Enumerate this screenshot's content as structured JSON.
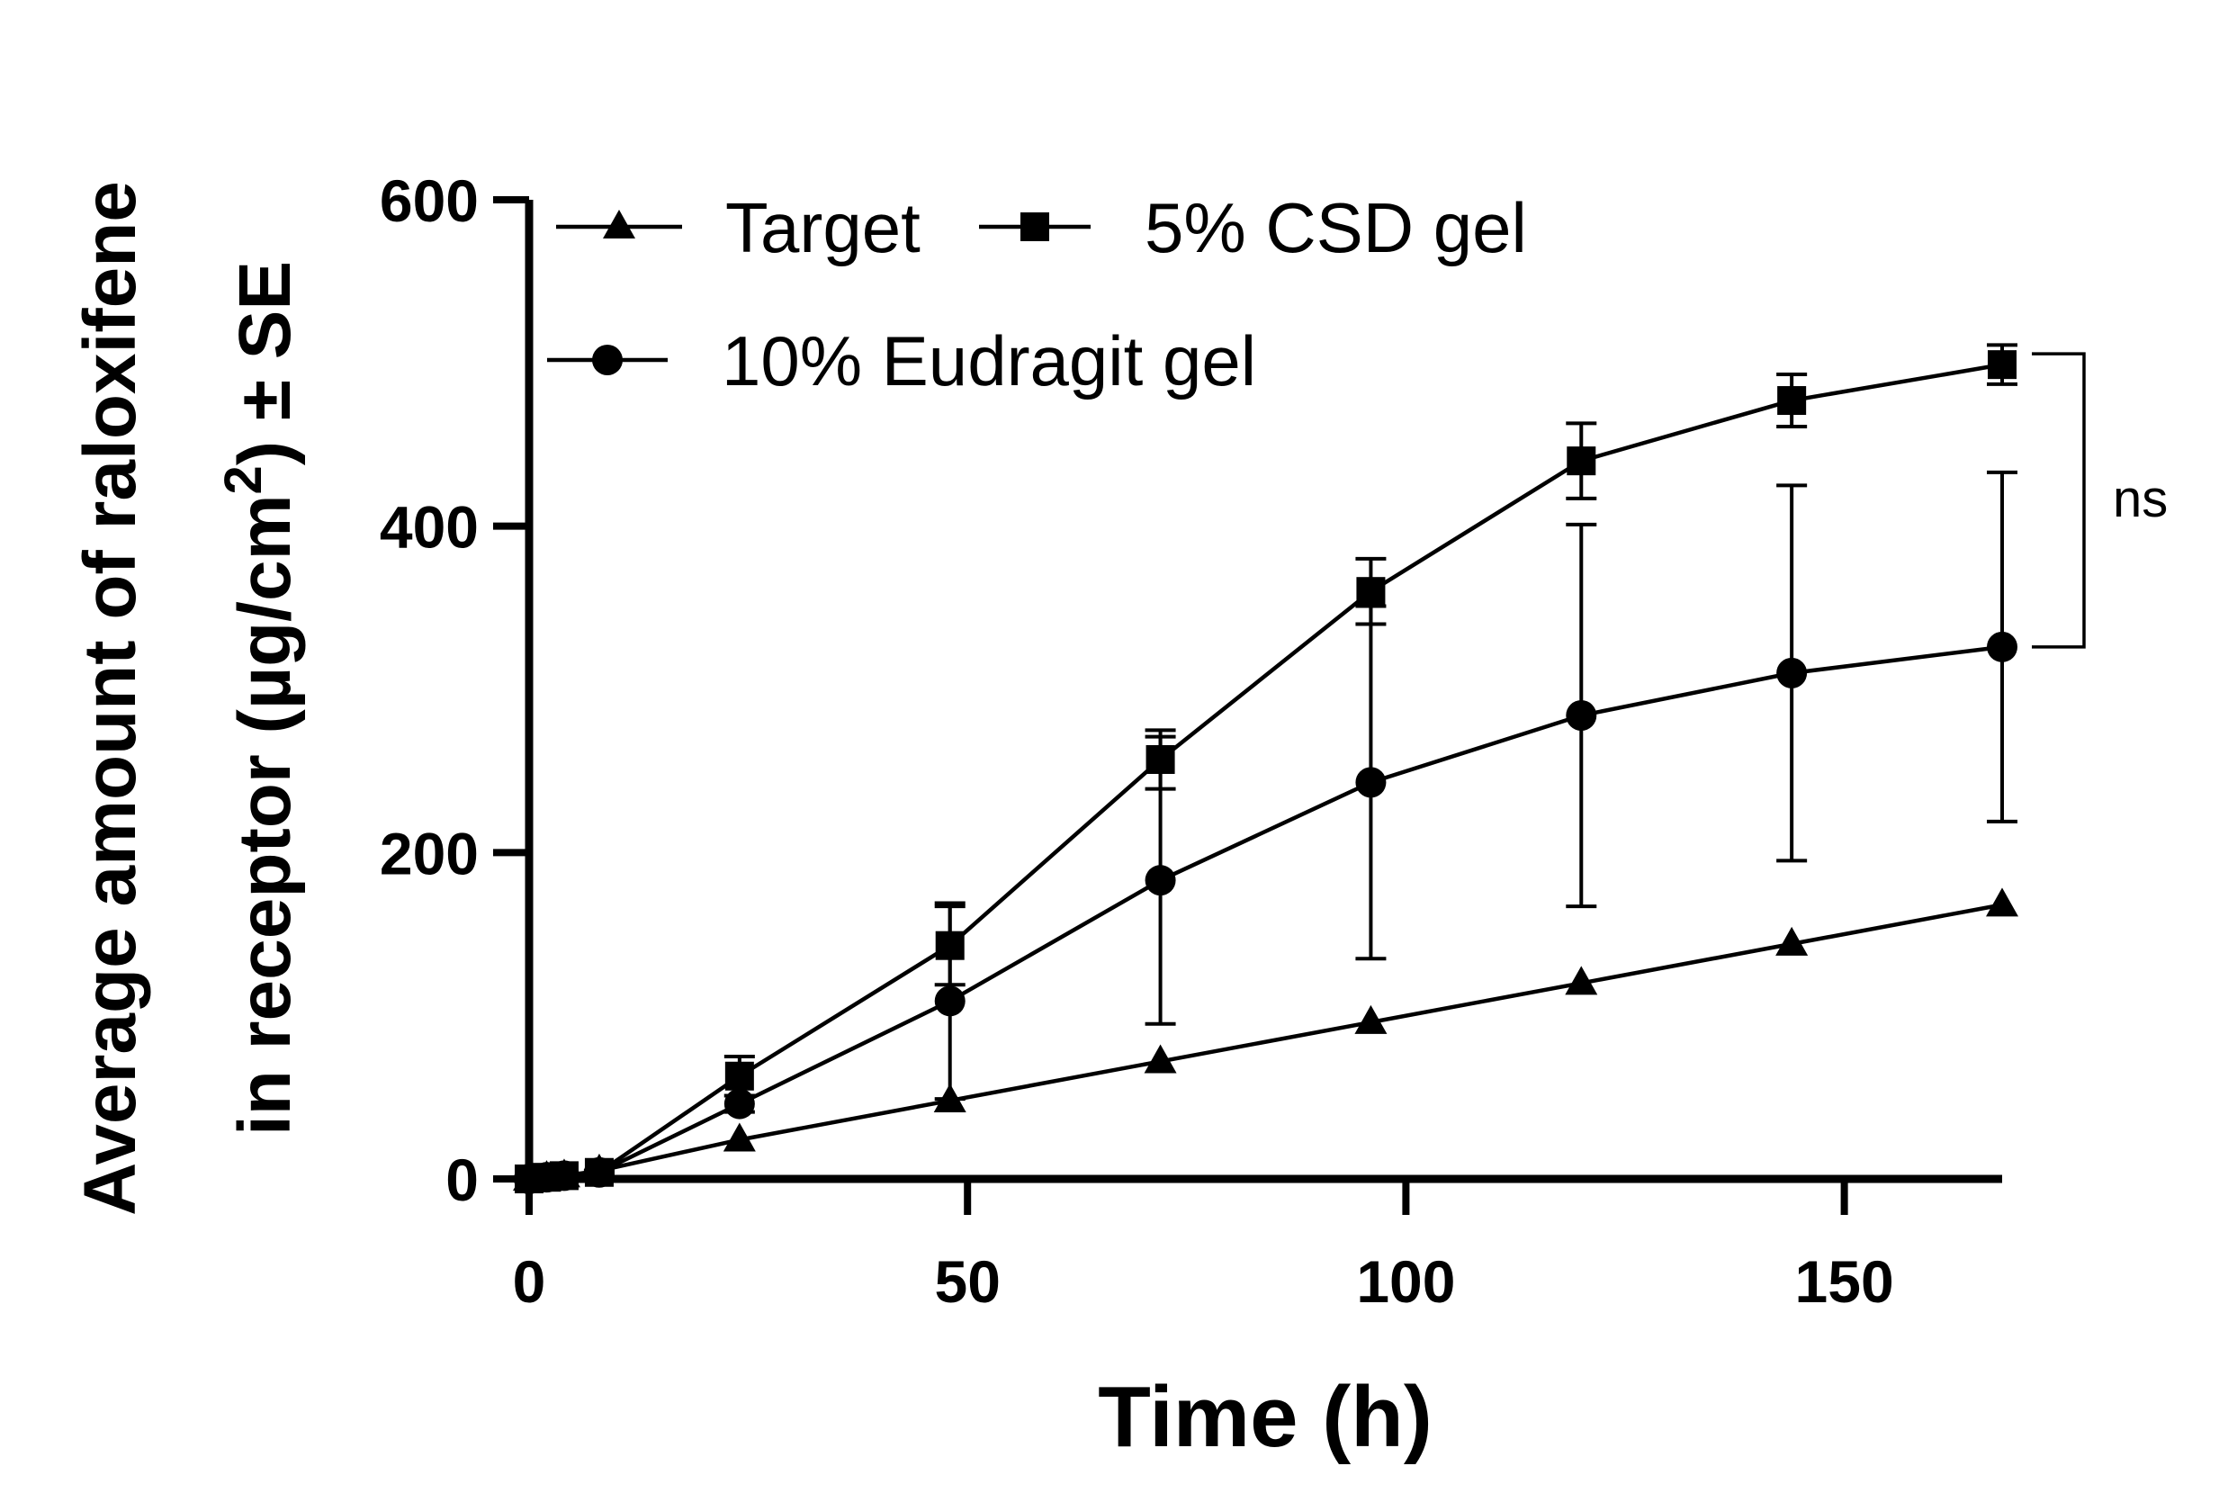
{
  "chart_data": {
    "type": "line",
    "xlabel": "Time (h)",
    "ylabel_line1": "Average amount of raloxifene",
    "ylabel_line2_pre": "in receptor (µg/cm",
    "ylabel_line2_sup": "2",
    "ylabel_line2_post": ") ± SE",
    "xlim": [
      0,
      168
    ],
    "ylim": [
      0,
      600
    ],
    "x_ticks": [
      0,
      50,
      100,
      150
    ],
    "y_ticks": [
      0,
      200,
      400,
      600
    ],
    "grid": false,
    "legend_position": "top-left",
    "series": [
      {
        "name": "Target",
        "marker": "triangle",
        "x": [
          0,
          2,
          4,
          8,
          24,
          48,
          72,
          96,
          120,
          144,
          168
        ],
        "y": [
          0,
          1,
          2,
          5,
          24,
          48,
          72,
          96,
          120,
          144,
          168
        ],
        "err": [
          0,
          0,
          0,
          0,
          0,
          0,
          0,
          0,
          0,
          0,
          0
        ]
      },
      {
        "name": "5% CSD gel",
        "marker": "square",
        "x": [
          0,
          2,
          4,
          8,
          24,
          48,
          72,
          96,
          120,
          144,
          168
        ],
        "y": [
          0,
          1,
          2,
          4,
          63,
          143,
          257,
          360,
          440,
          477,
          499
        ],
        "err": [
          0,
          0,
          0,
          1,
          12,
          24,
          18,
          20,
          23,
          16,
          12
        ]
      },
      {
        "name": "10% Eudragit gel",
        "marker": "circle",
        "x": [
          0,
          2,
          4,
          8,
          24,
          48,
          72,
          96,
          120,
          144,
          168
        ],
        "y": [
          0,
          1,
          2,
          4,
          46,
          109,
          183,
          243,
          284,
          310,
          326
        ],
        "err": [
          0,
          0,
          0,
          1,
          5,
          60,
          88,
          108,
          117,
          115,
          107
        ]
      }
    ],
    "annotation": {
      "text": "ns",
      "between": [
        "5% CSD gel",
        "10% Eudragit gel"
      ],
      "at_x": 168
    }
  }
}
